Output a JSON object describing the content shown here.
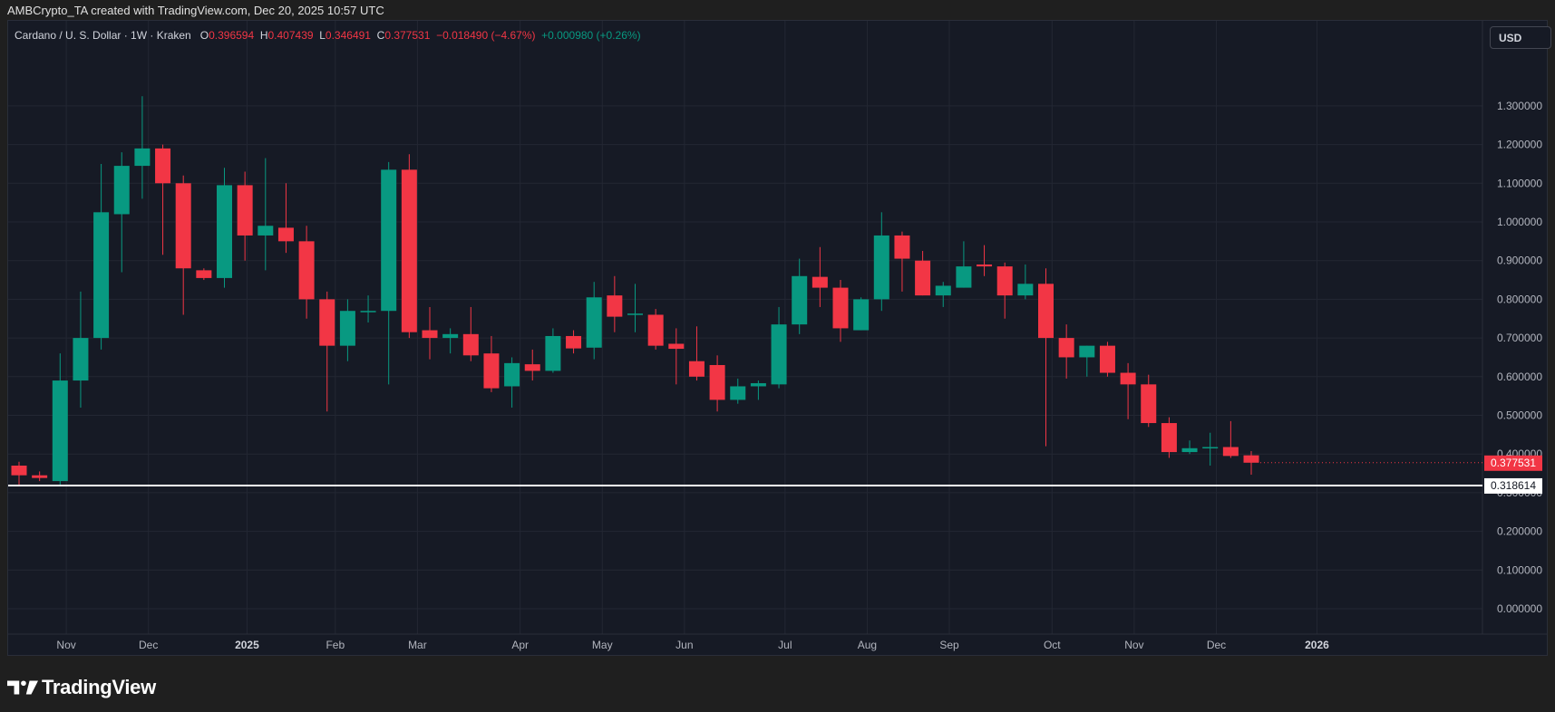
{
  "header": {
    "credit": "AMBCrypto_TA created with TradingView.com, Dec 20, 2025 10:57 UTC"
  },
  "legend": {
    "symbol": "Cardano / U. S. Dollar · 1W · Kraken",
    "o_label": "O",
    "o_value": "0.396594",
    "h_label": "H",
    "h_value": "0.407439",
    "l_label": "L",
    "l_value": "0.346491",
    "c_label": "C",
    "c_value": "0.377531",
    "change": "−0.018490 (−4.67%)",
    "volume_change": "+0.000980 (+0.26%)"
  },
  "currency_button": "USD",
  "footer": {
    "brand": "TradingView"
  },
  "colors": {
    "up": "#089981",
    "down": "#f23645",
    "background": "#161a25",
    "grid": "#232733",
    "text": "#b2b5be",
    "support": "#ffffff"
  },
  "chart_data": {
    "type": "candlestick",
    "timeframe": "1W",
    "y_axis": {
      "ticks": [
        "1.300000",
        "1.200000",
        "1.100000",
        "1.000000",
        "0.900000",
        "0.800000",
        "0.700000",
        "0.600000",
        "0.500000",
        "0.400000",
        "0.300000",
        "0.200000",
        "0.100000",
        "0.000000"
      ],
      "ylim": [
        0,
        1.36
      ]
    },
    "x_axis": {
      "labels": [
        {
          "text": "Nov",
          "index": 2.3
        },
        {
          "text": "Dec",
          "index": 6.3
        },
        {
          "text": "2025",
          "index": 11.1
        },
        {
          "text": "Feb",
          "index": 15.4
        },
        {
          "text": "Mar",
          "index": 19.4
        },
        {
          "text": "Apr",
          "index": 24.4
        },
        {
          "text": "May",
          "index": 28.4
        },
        {
          "text": "Jun",
          "index": 32.4
        },
        {
          "text": "Jul",
          "index": 37.3
        },
        {
          "text": "Aug",
          "index": 41.3
        },
        {
          "text": "Sep",
          "index": 45.3
        },
        {
          "text": "Oct",
          "index": 50.3
        },
        {
          "text": "Nov",
          "index": 54.3
        },
        {
          "text": "Dec",
          "index": 58.3
        },
        {
          "text": "2026",
          "index": 63.2
        }
      ]
    },
    "candles": [
      {
        "o": 0.37,
        "h": 0.38,
        "l": 0.32,
        "c": 0.345
      },
      {
        "o": 0.345,
        "h": 0.355,
        "l": 0.33,
        "c": 0.338
      },
      {
        "o": 0.33,
        "h": 0.66,
        "l": 0.32,
        "c": 0.59
      },
      {
        "o": 0.59,
        "h": 0.82,
        "l": 0.52,
        "c": 0.7
      },
      {
        "o": 0.7,
        "h": 1.15,
        "l": 0.67,
        "c": 1.025
      },
      {
        "o": 1.02,
        "h": 1.18,
        "l": 0.87,
        "c": 1.145
      },
      {
        "o": 1.145,
        "h": 1.325,
        "l": 1.06,
        "c": 1.19
      },
      {
        "o": 1.19,
        "h": 1.2,
        "l": 0.915,
        "c": 1.1
      },
      {
        "o": 1.1,
        "h": 1.12,
        "l": 0.76,
        "c": 0.88
      },
      {
        "o": 0.875,
        "h": 0.88,
        "l": 0.85,
        "c": 0.855
      },
      {
        "o": 0.855,
        "h": 1.14,
        "l": 0.83,
        "c": 1.095
      },
      {
        "o": 1.095,
        "h": 1.13,
        "l": 0.9,
        "c": 0.965
      },
      {
        "o": 0.965,
        "h": 1.165,
        "l": 0.875,
        "c": 0.99
      },
      {
        "o": 0.985,
        "h": 1.1,
        "l": 0.92,
        "c": 0.95
      },
      {
        "o": 0.95,
        "h": 0.99,
        "l": 0.75,
        "c": 0.8
      },
      {
        "o": 0.8,
        "h": 0.82,
        "l": 0.51,
        "c": 0.68
      },
      {
        "o": 0.68,
        "h": 0.8,
        "l": 0.64,
        "c": 0.77
      },
      {
        "o": 0.77,
        "h": 0.81,
        "l": 0.74,
        "c": 0.77
      },
      {
        "o": 0.77,
        "h": 1.155,
        "l": 0.58,
        "c": 1.135
      },
      {
        "o": 1.135,
        "h": 1.175,
        "l": 0.7,
        "c": 0.715
      },
      {
        "o": 0.72,
        "h": 0.78,
        "l": 0.645,
        "c": 0.7
      },
      {
        "o": 0.7,
        "h": 0.725,
        "l": 0.66,
        "c": 0.71
      },
      {
        "o": 0.71,
        "h": 0.78,
        "l": 0.64,
        "c": 0.655
      },
      {
        "o": 0.66,
        "h": 0.705,
        "l": 0.56,
        "c": 0.57
      },
      {
        "o": 0.575,
        "h": 0.65,
        "l": 0.52,
        "c": 0.635
      },
      {
        "o": 0.632,
        "h": 0.67,
        "l": 0.59,
        "c": 0.615
      },
      {
        "o": 0.615,
        "h": 0.725,
        "l": 0.61,
        "c": 0.705
      },
      {
        "o": 0.705,
        "h": 0.72,
        "l": 0.66,
        "c": 0.673
      },
      {
        "o": 0.675,
        "h": 0.845,
        "l": 0.645,
        "c": 0.805
      },
      {
        "o": 0.81,
        "h": 0.86,
        "l": 0.715,
        "c": 0.755
      },
      {
        "o": 0.76,
        "h": 0.84,
        "l": 0.715,
        "c": 0.763
      },
      {
        "o": 0.76,
        "h": 0.775,
        "l": 0.67,
        "c": 0.68
      },
      {
        "o": 0.685,
        "h": 0.725,
        "l": 0.58,
        "c": 0.672
      },
      {
        "o": 0.64,
        "h": 0.73,
        "l": 0.59,
        "c": 0.6
      },
      {
        "o": 0.63,
        "h": 0.655,
        "l": 0.51,
        "c": 0.54
      },
      {
        "o": 0.54,
        "h": 0.595,
        "l": 0.53,
        "c": 0.575
      },
      {
        "o": 0.575,
        "h": 0.59,
        "l": 0.54,
        "c": 0.583
      },
      {
        "o": 0.58,
        "h": 0.78,
        "l": 0.57,
        "c": 0.735
      },
      {
        "o": 0.735,
        "h": 0.905,
        "l": 0.71,
        "c": 0.86
      },
      {
        "o": 0.858,
        "h": 0.935,
        "l": 0.78,
        "c": 0.83
      },
      {
        "o": 0.83,
        "h": 0.85,
        "l": 0.69,
        "c": 0.725
      },
      {
        "o": 0.72,
        "h": 0.805,
        "l": 0.72,
        "c": 0.8
      },
      {
        "o": 0.8,
        "h": 1.025,
        "l": 0.77,
        "c": 0.965
      },
      {
        "o": 0.965,
        "h": 0.975,
        "l": 0.82,
        "c": 0.905
      },
      {
        "o": 0.9,
        "h": 0.925,
        "l": 0.81,
        "c": 0.81
      },
      {
        "o": 0.81,
        "h": 0.845,
        "l": 0.78,
        "c": 0.835
      },
      {
        "o": 0.83,
        "h": 0.95,
        "l": 0.83,
        "c": 0.885
      },
      {
        "o": 0.89,
        "h": 0.94,
        "l": 0.86,
        "c": 0.885
      },
      {
        "o": 0.885,
        "h": 0.895,
        "l": 0.75,
        "c": 0.81
      },
      {
        "o": 0.81,
        "h": 0.89,
        "l": 0.8,
        "c": 0.84
      },
      {
        "o": 0.84,
        "h": 0.88,
        "l": 0.42,
        "c": 0.7
      },
      {
        "o": 0.7,
        "h": 0.735,
        "l": 0.595,
        "c": 0.65
      },
      {
        "o": 0.65,
        "h": 0.68,
        "l": 0.6,
        "c": 0.68
      },
      {
        "o": 0.68,
        "h": 0.69,
        "l": 0.6,
        "c": 0.61
      },
      {
        "o": 0.61,
        "h": 0.635,
        "l": 0.49,
        "c": 0.58
      },
      {
        "o": 0.58,
        "h": 0.605,
        "l": 0.47,
        "c": 0.48
      },
      {
        "o": 0.48,
        "h": 0.495,
        "l": 0.39,
        "c": 0.405
      },
      {
        "o": 0.405,
        "h": 0.435,
        "l": 0.4,
        "c": 0.415
      },
      {
        "o": 0.415,
        "h": 0.455,
        "l": 0.37,
        "c": 0.418
      },
      {
        "o": 0.418,
        "h": 0.485,
        "l": 0.39,
        "c": 0.395
      },
      {
        "o": 0.396594,
        "h": 0.407439,
        "l": 0.346491,
        "c": 0.377531
      }
    ],
    "last_price": {
      "value": 0.377531,
      "label": "0.377531"
    },
    "support_line": {
      "value": 0.318614,
      "label": "0.318614"
    }
  }
}
